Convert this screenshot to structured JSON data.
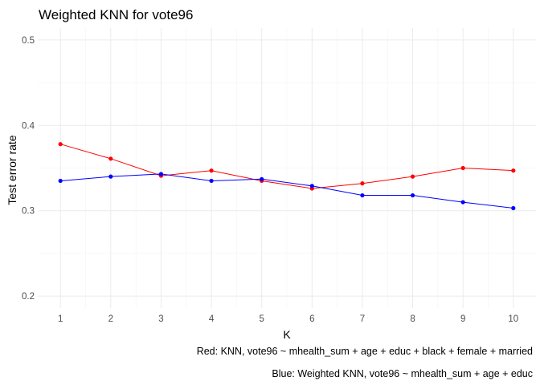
{
  "chart_data": {
    "type": "line",
    "title": "Weighted KNN for vote96",
    "xlabel": "K",
    "ylabel": "Test error rate",
    "x": [
      1,
      2,
      3,
      4,
      5,
      6,
      7,
      8,
      9,
      10
    ],
    "xticks": [
      "1",
      "2",
      "3",
      "4",
      "5",
      "6",
      "7",
      "8",
      "9",
      "10"
    ],
    "xlim": [
      0.55,
      10.45
    ],
    "yticks": [
      0.2,
      0.3,
      0.4,
      0.5
    ],
    "ytick_labels": [
      "0.2",
      "0.3",
      "0.4",
      "0.5"
    ],
    "ylim": [
      0.186,
      0.514
    ],
    "grid": true,
    "series": [
      {
        "color": "#ff0000",
        "values": [
          0.378,
          0.361,
          0.341,
          0.347,
          0.335,
          0.326,
          0.332,
          0.34,
          0.35,
          0.347
        ]
      },
      {
        "color": "#0000ff",
        "values": [
          0.335,
          0.34,
          0.343,
          0.335,
          0.337,
          0.329,
          0.318,
          0.318,
          0.31,
          0.303
        ]
      }
    ],
    "captions": [
      "Red: KNN, vote96 ~ mhealth_sum + age + educ + black + female + married",
      "Blue: Weighted KNN, vote96 ~ mhealth_sum + age + educ"
    ]
  }
}
